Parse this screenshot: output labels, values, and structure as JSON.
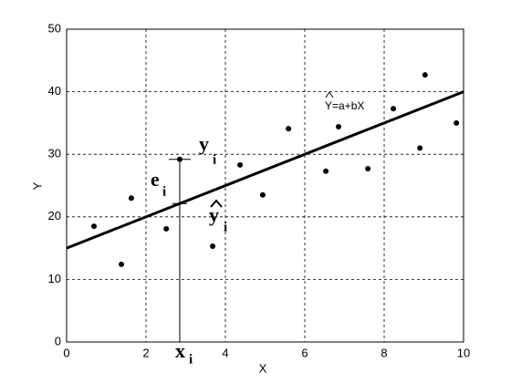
{
  "chart_data": {
    "type": "scatter",
    "x_label": "X",
    "y_label": "Y",
    "x": [
      0.69,
      1.38,
      1.63,
      2.51,
      2.85,
      3.68,
      4.37,
      4.94,
      5.59,
      6.53,
      6.85,
      7.59,
      8.23,
      8.9,
      9.03,
      9.82
    ],
    "values": [
      18.5,
      12.4,
      23.0,
      18.1,
      29.2,
      15.3,
      28.3,
      23.5,
      34.1,
      27.3,
      34.4,
      27.7,
      37.3,
      31.0,
      42.7,
      35.0
    ],
    "color": "#000000",
    "line": {
      "x": [
        0,
        10
      ],
      "y": [
        15,
        40
      ],
      "color": "#000000",
      "label": "Y=a+bX"
    },
    "annotations": [
      {
        "text": "y",
        "sub": "i"
      },
      {
        "text": "e",
        "sub": "i"
      },
      {
        "text": "y",
        "sub": "i"
      },
      {
        "text": "x",
        "sub": "i"
      }
    ],
    "xlim": [
      0,
      10
    ],
    "ylim": [
      0,
      50
    ],
    "xticks": [
      0,
      2,
      4,
      6,
      8,
      10
    ],
    "yticks": [
      0,
      10,
      20,
      30,
      40,
      50
    ],
    "grid": true
  }
}
